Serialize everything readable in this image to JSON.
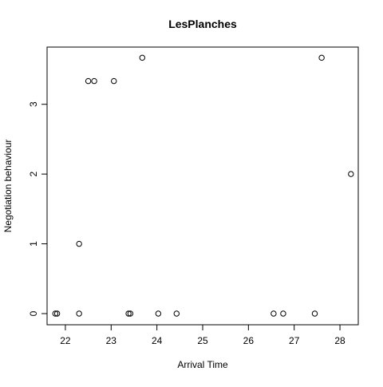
{
  "chart_data": {
    "type": "scatter",
    "title": "LesPlanches",
    "xlabel": "Arrival Time",
    "ylabel": "Negotiation behaviour",
    "xlim": [
      21.6,
      28.4
    ],
    "ylim": [
      -0.16,
      3.82
    ],
    "xticks": [
      22,
      23,
      24,
      25,
      26,
      27,
      28
    ],
    "yticks": [
      0,
      1,
      2,
      3
    ],
    "grid": false,
    "marker": "open-circle",
    "color": "#000000",
    "points": [
      {
        "x": 21.78,
        "y": 0
      },
      {
        "x": 21.82,
        "y": 0
      },
      {
        "x": 22.3,
        "y": 0
      },
      {
        "x": 22.3,
        "y": 1
      },
      {
        "x": 22.5,
        "y": 3.333
      },
      {
        "x": 22.63,
        "y": 3.333
      },
      {
        "x": 23.06,
        "y": 3.333
      },
      {
        "x": 23.38,
        "y": 0
      },
      {
        "x": 23.42,
        "y": 0
      },
      {
        "x": 23.68,
        "y": 3.667
      },
      {
        "x": 24.03,
        "y": 0
      },
      {
        "x": 24.43,
        "y": 0
      },
      {
        "x": 26.55,
        "y": 0
      },
      {
        "x": 26.76,
        "y": 0
      },
      {
        "x": 27.45,
        "y": 0
      },
      {
        "x": 27.6,
        "y": 3.667
      },
      {
        "x": 28.24,
        "y": 2
      }
    ]
  }
}
